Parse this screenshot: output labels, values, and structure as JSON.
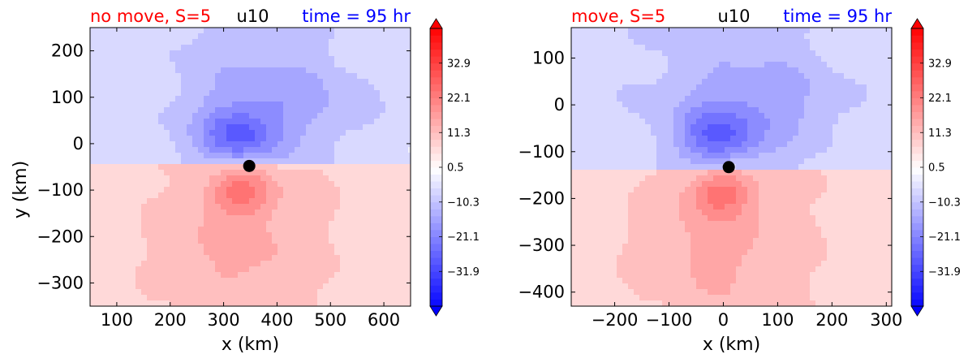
{
  "colors": {
    "red_title": "#ff0000",
    "blue_title": "#0000ff",
    "text": "#000000",
    "max_red": "#ff0000",
    "max_blue": "#0000ff"
  },
  "chart_data": [
    {
      "type": "heatmap",
      "title_left": "no move, S=5",
      "title_center": "u10",
      "title_right": "time = 95 hr",
      "xlabel": "x (km)",
      "ylabel": "y (km)",
      "xlim": [
        50,
        650
      ],
      "ylim": [
        -350,
        250
      ],
      "xticks": [
        100,
        200,
        300,
        400,
        500,
        600
      ],
      "yticks": [
        -300,
        -200,
        -100,
        0,
        100,
        200
      ],
      "center_marker": {
        "x": 348,
        "y": -48
      },
      "colorbar": {
        "range": [
          -42.7,
          43.7
        ],
        "ticks": [
          32.9,
          22.1,
          11.3,
          0.5,
          -10.3,
          -21.1,
          -31.9
        ],
        "tick_labels": [
          "32.9",
          "22.1",
          "11.3",
          "0.5",
          "−10.3",
          "−21.1",
          "−31.9"
        ],
        "extend": "both"
      }
    },
    {
      "type": "heatmap",
      "title_left": "move, S=5",
      "title_center": "u10",
      "title_right": "time = 95 hr",
      "xlabel": "x (km)",
      "ylabel": "",
      "xlim": [
        -280,
        310
      ],
      "ylim": [
        -430,
        165
      ],
      "xticks": [
        -200,
        -100,
        0,
        100,
        200,
        300
      ],
      "yticks": [
        -400,
        -300,
        -200,
        -100,
        0,
        100
      ],
      "center_marker": {
        "x": 10,
        "y": -133
      },
      "colorbar": {
        "range": [
          -42.7,
          43.7
        ],
        "ticks": [
          32.9,
          22.1,
          11.3,
          0.5,
          -10.3,
          -21.1,
          -31.9
        ],
        "tick_labels": [
          "32.9",
          "22.1",
          "11.3",
          "0.5",
          "−10.3",
          "−21.1",
          "−31.9"
        ],
        "extend": "both"
      }
    }
  ]
}
